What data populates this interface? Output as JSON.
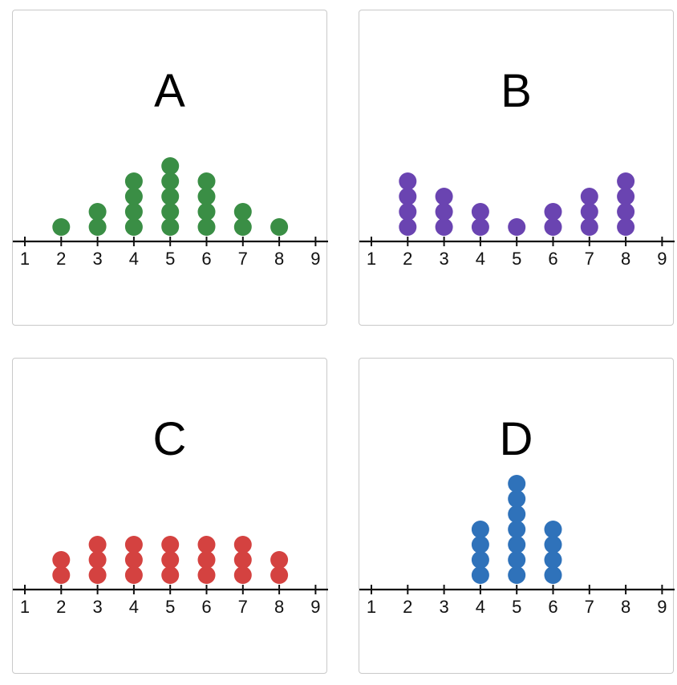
{
  "chart_data": [
    {
      "type": "dot-plot",
      "title": "A",
      "color": "#3a8e45",
      "x_ticks": [
        1,
        2,
        3,
        4,
        5,
        6,
        7,
        8,
        9
      ],
      "categories": [
        2,
        3,
        4,
        5,
        6,
        7,
        8
      ],
      "values": [
        1,
        2,
        4,
        5,
        4,
        2,
        1
      ]
    },
    {
      "type": "dot-plot",
      "title": "B",
      "color": "#6a44b1",
      "x_ticks": [
        1,
        2,
        3,
        4,
        5,
        6,
        7,
        8,
        9
      ],
      "categories": [
        2,
        3,
        4,
        5,
        6,
        7,
        8
      ],
      "values": [
        4,
        3,
        2,
        1,
        2,
        3,
        4
      ]
    },
    {
      "type": "dot-plot",
      "title": "C",
      "color": "#d44240",
      "x_ticks": [
        1,
        2,
        3,
        4,
        5,
        6,
        7,
        8,
        9
      ],
      "categories": [
        2,
        3,
        4,
        5,
        6,
        7,
        8
      ],
      "values": [
        2,
        3,
        3,
        3,
        3,
        3,
        2
      ]
    },
    {
      "type": "dot-plot",
      "title": "D",
      "color": "#2f72ba",
      "x_ticks": [
        1,
        2,
        3,
        4,
        5,
        6,
        7,
        8,
        9
      ],
      "categories": [
        4,
        5,
        6
      ],
      "values": [
        4,
        7,
        4
      ]
    }
  ]
}
